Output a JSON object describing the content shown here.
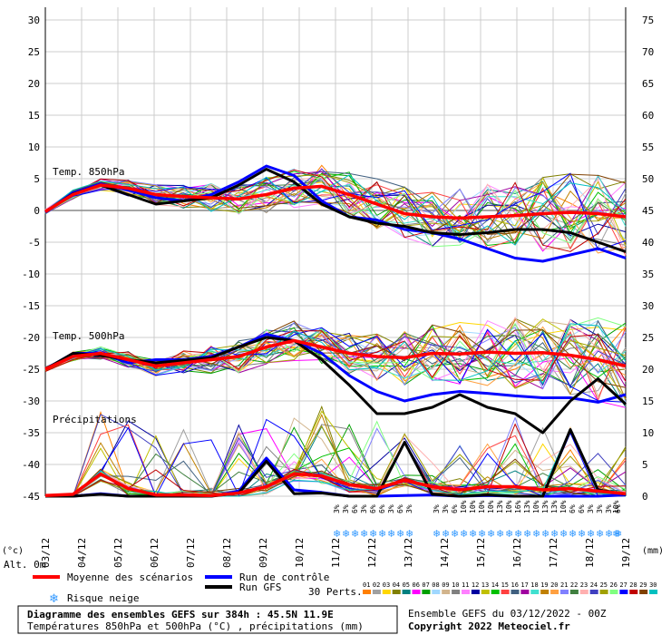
{
  "chart_data": {
    "type": "line",
    "left_axis_ticks": [
      30,
      25,
      20,
      15,
      10,
      5,
      0,
      -5,
      -10,
      -15,
      -20,
      -25,
      -30,
      -35,
      -40,
      -45
    ],
    "right_axis_ticks": [
      75,
      70,
      65,
      60,
      55,
      50,
      45,
      40,
      35,
      30,
      25,
      20,
      15,
      10,
      5,
      0
    ],
    "left_axis_unit": "(°c)",
    "right_axis_unit": "(mm)",
    "altitude_label": "Alt. 0m",
    "x_dates": [
      "03/12",
      "04/12",
      "05/12",
      "06/12",
      "07/12",
      "08/12",
      "09/12",
      "10/12",
      "11/12",
      "12/12",
      "13/12",
      "14/12",
      "15/12",
      "16/12",
      "17/12",
      "18/12",
      "19/12"
    ],
    "panel_labels": {
      "t850": "Temp. 850hPa",
      "t500": "Temp. 500hPa",
      "precip": "Précipitations"
    },
    "snow_risk_days": [
      {
        "day": 11.0,
        "labels": [
          "3%",
          "3%",
          "6%",
          "3%",
          "6%",
          "6%",
          "3%",
          "6%",
          "3%"
        ]
      },
      {
        "day": 14.0,
        "labels": [
          "3%",
          "3%",
          "6%",
          "10%",
          "10%",
          "10%",
          "10%",
          "13%",
          "10%",
          "16%",
          "13%",
          "10%",
          "13%",
          "13%",
          "10%",
          "6%",
          "6%",
          "3%",
          "3%",
          "3%",
          "6%"
        ]
      },
      {
        "day": 18.3,
        "labels": [
          "10%"
        ]
      }
    ],
    "series": [
      {
        "name": "Moyenne des scénarios",
        "color": "#ff0000",
        "t850": [
          -0.2,
          2.5,
          4.0,
          3.5,
          2.5,
          2.2,
          2.0,
          1.8,
          2.5,
          3.5,
          3.8,
          2.5,
          1.0,
          -0.5,
          -1.0,
          -1.2,
          -1.0,
          -0.8,
          -0.5,
          -0.3,
          -0.5,
          -1.0
        ],
        "t500": [
          -25,
          -23,
          -22.5,
          -23.5,
          -24.5,
          -24,
          -23.5,
          -23,
          -21.5,
          -20.5,
          -21.5,
          -22.5,
          -23,
          -23.2,
          -22.5,
          -22.6,
          -22.3,
          -22.5,
          -22.4,
          -22.8,
          -23.5,
          -24.5
        ],
        "precip": [
          0.1,
          0.3,
          3.5,
          1.2,
          0.2,
          0.2,
          0.1,
          0.5,
          1.5,
          3.5,
          3.2,
          1.8,
          1.2,
          2.5,
          1.5,
          1.0,
          1.5,
          1.5,
          1.0,
          1.2,
          0.8,
          0.4
        ]
      },
      {
        "name": "Run de contrôle",
        "color": "#0000ff",
        "t850": [
          -0.3,
          2.8,
          4.2,
          3.2,
          2.0,
          1.5,
          2.5,
          4.5,
          7.0,
          5.5,
          1.5,
          -1.0,
          -1.5,
          -3.0,
          -3.5,
          -4.5,
          -6.0,
          -7.5,
          -8.0,
          -7.0,
          -6.0,
          -7.5
        ],
        "t500": [
          -25,
          -22.5,
          -22.5,
          -24,
          -23.5,
          -23.5,
          -23,
          -21.5,
          -19.5,
          -20.5,
          -22.5,
          -26,
          -28.5,
          -30,
          -29,
          -28.5,
          -28.8,
          -29.2,
          -29.5,
          -29.5,
          -30.2,
          -29.0
        ],
        "precip": [
          0,
          0,
          0.4,
          0,
          0,
          0,
          0,
          0.8,
          6.0,
          1.0,
          0.6,
          0,
          0,
          0.1,
          0.2,
          0,
          0.1,
          0,
          0,
          0,
          0,
          0.2
        ]
      },
      {
        "name": "Run GFS",
        "color": "#000000",
        "t850": [
          -0.2,
          2.6,
          4.0,
          2.5,
          1.0,
          1.5,
          2.0,
          4.0,
          6.5,
          4.5,
          1.0,
          -1.0,
          -2.0,
          -2.5,
          -3.5,
          -3.8,
          -3.5,
          -3.0,
          -3.0,
          -3.5,
          -5.0,
          -6.5
        ],
        "t500": [
          -25,
          -22.5,
          -22.8,
          -23.5,
          -24,
          -23.6,
          -23.2,
          -21.5,
          -20.0,
          -20.5,
          -23.5,
          -27.5,
          -32,
          -32,
          -31,
          -29,
          -31,
          -32,
          -35,
          -30,
          -26.5,
          -30.5
        ],
        "precip": [
          0,
          0,
          0.3,
          0,
          0,
          0,
          0,
          0.5,
          5.5,
          0.4,
          0.5,
          0,
          0,
          8.5,
          0.3,
          0,
          0.2,
          0,
          0,
          10.5,
          1.0,
          0.3
        ]
      }
    ]
  },
  "legend": {
    "items": [
      {
        "label": "Moyenne des scénarios",
        "color": "#ff0000"
      },
      {
        "label": "Run de contrôle",
        "color": "#0000ff"
      },
      {
        "label": "Run GFS",
        "color": "#000000"
      }
    ],
    "snow_label": "Risque neige",
    "perts_label": "30 Perts.",
    "pert_numbers": [
      "01",
      "02",
      "03",
      "04",
      "05",
      "06",
      "07",
      "08",
      "09",
      "10",
      "11",
      "12",
      "13",
      "14",
      "15",
      "16",
      "17",
      "18",
      "19",
      "20",
      "21",
      "22",
      "23",
      "24",
      "25",
      "26",
      "27",
      "28",
      "29",
      "30"
    ],
    "pert_colors": [
      "#ff8000",
      "#a0a0a0",
      "#ffd700",
      "#808000",
      "#008080",
      "#ff00ff",
      "#00a000",
      "#a0d8ff",
      "#d2b48c",
      "#808080",
      "#ff80ff",
      "#0000a0",
      "#c0c000",
      "#00c000",
      "#ff4040",
      "#406080",
      "#a000a0",
      "#40e0d0",
      "#c08000",
      "#ffa040",
      "#8080ff",
      "#408040",
      "#ffb0b0",
      "#4040c0",
      "#a0a000",
      "#80ff80",
      "#0000ff",
      "#c00000",
      "#804000",
      "#00c0c0"
    ]
  },
  "footer": {
    "title": "Diagramme des ensembles GEFS sur 384h : 45.5N 11.9E",
    "subtitle": "Températures 850hPa et 500hPa (°C) , précipitations (mm)",
    "run_info": "Ensemble GEFS du 03/12/2022 - 00Z",
    "copyright": "Copyright 2022 Meteociel.fr"
  }
}
